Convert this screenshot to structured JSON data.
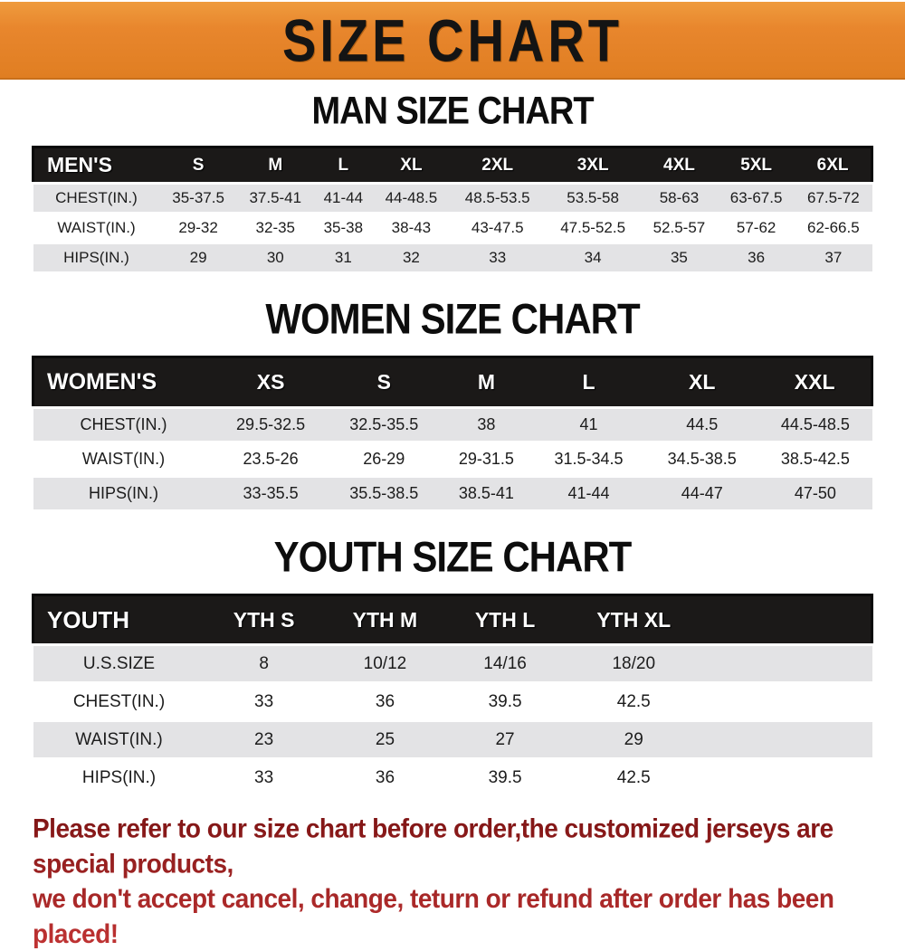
{
  "page": {
    "banner_title": "SIZE CHART"
  },
  "colors": {
    "banner_orange": "#E8862D",
    "header_black": "#1B1918",
    "stripe_gray": "#E3E3E5",
    "disclaimer_red": "#9E2020"
  },
  "sections": [
    {
      "title": "MAN SIZE CHART",
      "header": [
        "MEN'S",
        "S",
        "M",
        "L",
        "XL",
        "2XL",
        "3XL",
        "4XL",
        "5XL",
        "6XL"
      ],
      "rows": [
        {
          "label": "CHEST(IN.)",
          "values": [
            "35-37.5",
            "37.5-41",
            "41-44",
            "44-48.5",
            "48.5-53.5",
            "53.5-58",
            "58-63",
            "63-67.5",
            "67.5-72"
          ]
        },
        {
          "label": "WAIST(IN.)",
          "values": [
            "29-32",
            "32-35",
            "35-38",
            "38-43",
            "43-47.5",
            "47.5-52.5",
            "52.5-57",
            "57-62",
            "62-66.5"
          ]
        },
        {
          "label": "HIPS(IN.)",
          "values": [
            "29",
            "30",
            "31",
            "32",
            "33",
            "34",
            "35",
            "36",
            "37"
          ]
        }
      ]
    },
    {
      "title": "WOMEN SIZE CHART",
      "header": [
        "WOMEN'S",
        "XS",
        "S",
        "M",
        "L",
        "XL",
        "XXL"
      ],
      "rows": [
        {
          "label": "CHEST(IN.)",
          "values": [
            "29.5-32.5",
            "32.5-35.5",
            "38",
            "41",
            "44.5",
            "44.5-48.5"
          ]
        },
        {
          "label": "WAIST(IN.)",
          "values": [
            "23.5-26",
            "26-29",
            "29-31.5",
            "31.5-34.5",
            "34.5-38.5",
            "38.5-42.5"
          ]
        },
        {
          "label": "HIPS(IN.)",
          "values": [
            "33-35.5",
            "35.5-38.5",
            "38.5-41",
            "41-44",
            "44-47",
            "47-50"
          ]
        }
      ]
    },
    {
      "title": "YOUTH SIZE CHART",
      "header": [
        "YOUTH",
        "YTH S",
        "YTH M",
        "YTH L",
        "YTH XL"
      ],
      "rows": [
        {
          "label": "U.S.SIZE",
          "values": [
            "8",
            "10/12",
            "14/16",
            "18/20"
          ]
        },
        {
          "label": "CHEST(IN.)",
          "values": [
            "33",
            "36",
            "39.5",
            "42.5"
          ]
        },
        {
          "label": "WAIST(IN.)",
          "values": [
            "23",
            "25",
            "27",
            "29"
          ]
        },
        {
          "label": "HIPS(IN.)",
          "values": [
            "33",
            "36",
            "39.5",
            "42.5"
          ]
        }
      ]
    }
  ],
  "disclaimer": {
    "line1": "Please refer to our size chart before order,the customized jerseys are special products,",
    "line2": "we don't accept cancel, change, teturn or refund after order has been placed!"
  }
}
